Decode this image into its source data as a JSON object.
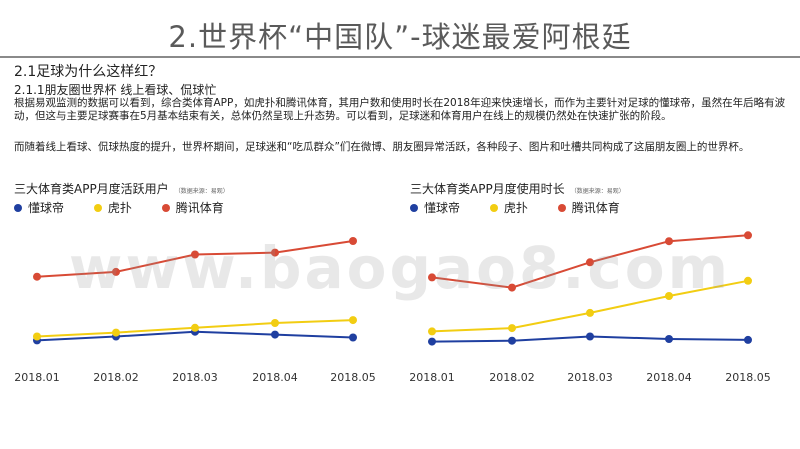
{
  "slide": {
    "title": "2.世界杯“中国队”-球迷最爱阿根廷",
    "section": "2.1足球为什么这样红？",
    "subsection": "2.1.1朋友圈世界杯   线上看球、侃球忙",
    "paragraph1": "根据易观监测的数据可以看到，综合类体育APP，如虎扑和腾讯体育，其用户数和使用时长在2018年迎来快速增长，而作为主要针对足球的懂球帝，虽然在年后略有波动，但这与主要足球赛事在5月基本结束有关，总体仍然呈现上升态势。可以看到，足球迷和体育用户在线上的规模仍然处在快速扩张的阶段。",
    "paragraph2": "而随着线上看球、侃球热度的提升，世界杯期间，足球迷和“吃瓜群众”们在微博、朋友圈异常活跃，各种段子、图片和吐槽共同构成了这届朋友圈上的世界杯。",
    "watermark": "www.baogao8.com"
  },
  "colors": {
    "dongqiudi": "#1f3fa0",
    "hupu": "#f2cd12",
    "tencent": "#d84a35"
  },
  "chart_data": [
    {
      "type": "line",
      "title": "三大体育类APP月度活跃用户",
      "source_note": "（数据来源：易观）",
      "categories": [
        "2018.01",
        "2018.02",
        "2018.03",
        "2018.04",
        "2018.05"
      ],
      "series": [
        {
          "name": "懂球帝",
          "values": [
            1.0,
            1.4,
            1.9,
            1.6,
            1.3
          ]
        },
        {
          "name": "虎扑",
          "values": [
            1.4,
            1.8,
            2.3,
            2.8,
            3.1
          ]
        },
        {
          "name": "腾讯体育",
          "values": [
            7.6,
            8.1,
            9.9,
            10.1,
            11.3
          ]
        }
      ],
      "ylim": [
        0,
        14
      ],
      "grid": false,
      "legend": "top-left"
    },
    {
      "type": "line",
      "title": "三大体育类APP月度使用时长",
      "source_note": "（数据来源：易观）",
      "categories": [
        "2018.01",
        "2018.02",
        "2018.03",
        "2018.04",
        "2018.05"
      ],
      "series": [
        {
          "name": "懂球帝",
          "values": [
            1.0,
            1.1,
            1.6,
            1.3,
            1.2
          ]
        },
        {
          "name": "虎扑",
          "values": [
            2.2,
            2.6,
            4.4,
            6.4,
            8.2
          ]
        },
        {
          "name": "腾讯体育",
          "values": [
            8.6,
            7.4,
            10.4,
            12.9,
            13.6
          ]
        }
      ],
      "ylim": [
        0,
        16
      ],
      "grid": false,
      "legend": "top-left"
    }
  ]
}
